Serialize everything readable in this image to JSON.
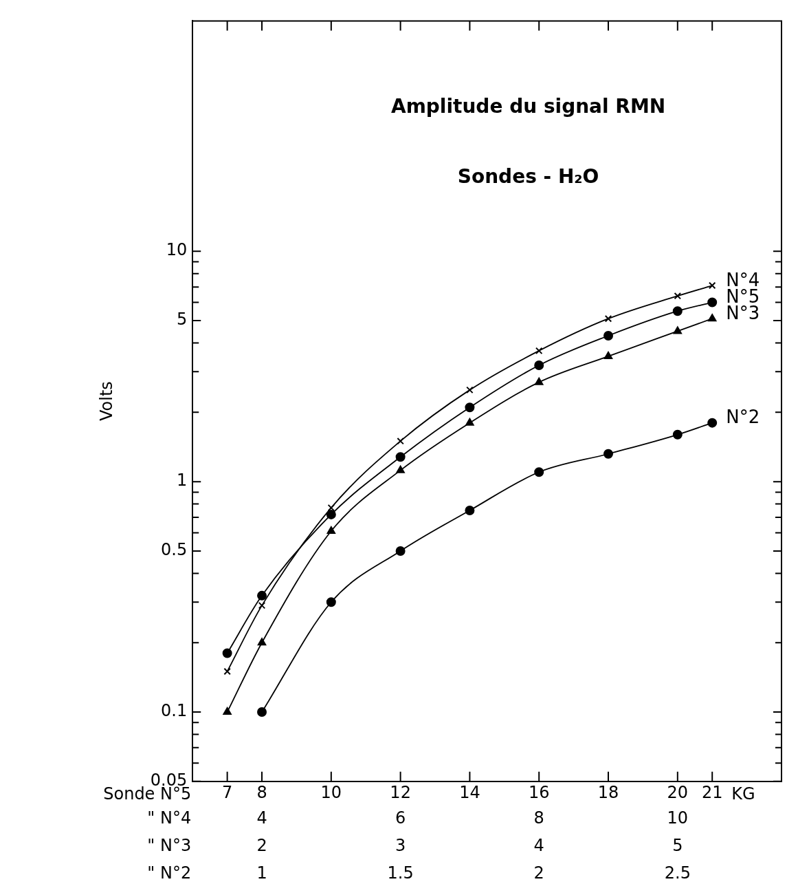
{
  "chart_data": {
    "type": "line",
    "title": "Amplitude du signal RMN",
    "subtitle": "Sondes - H₂O",
    "ylabel": "Volts",
    "xlabel": "Sonde N°5",
    "x2label": "\" N°4",
    "annotations": [
      "KG",
      "\" N°3",
      "2",
      "3",
      "4",
      "5",
      "\" N°2",
      "1",
      "1.5",
      "2",
      "2.5"
    ],
    "log": "y",
    "grid": false,
    "legend": "right",
    "line_style": "solid",
    "xlim": [
      6,
      23
    ],
    "xticks": [
      7,
      8,
      10,
      12,
      14,
      16,
      18,
      20,
      21
    ],
    "x2lim": [
      3,
      11.5
    ],
    "x2ticks": [
      4,
      6,
      8,
      10
    ],
    "ylim": [
      0.05,
      100
    ],
    "yticks": [
      0.05,
      {
        "value": 0.06,
        "label": null
      },
      {
        "value": 0.07,
        "label": null
      },
      {
        "value": 0.08,
        "label": null
      },
      {
        "value": 0.09,
        "label": null
      },
      0.1,
      {
        "value": 0.2,
        "label": null
      },
      {
        "value": 0.3,
        "label": null
      },
      {
        "value": 0.4,
        "label": null
      },
      0.5,
      {
        "value": 0.6,
        "label": null
      },
      {
        "value": 0.7,
        "label": null
      },
      {
        "value": 0.8,
        "label": null
      },
      {
        "value": 0.9,
        "label": null
      },
      1,
      {
        "value": 2,
        "label": null
      },
      {
        "value": 3,
        "label": null
      },
      {
        "value": 4,
        "label": null
      },
      5,
      {
        "value": 6,
        "label": null
      },
      {
        "value": 7,
        "label": null
      },
      {
        "value": 8,
        "label": null
      },
      {
        "value": 9,
        "label": null
      },
      10
    ],
    "series": [
      {
        "name": "N°4",
        "color": "#000000",
        "marker": "cross",
        "x": [
          7,
          8,
          10,
          12,
          14,
          16,
          18,
          20,
          21
        ],
        "values": [
          0.15,
          0.29,
          0.77,
          1.5,
          2.5,
          3.7,
          5.1,
          6.4,
          7.1
        ]
      },
      {
        "name": "N°5",
        "color": "#000000",
        "marker": "circle",
        "x": [
          7,
          8,
          10,
          12,
          14,
          16,
          18,
          20,
          21
        ],
        "values": [
          0.18,
          0.32,
          0.72,
          1.28,
          2.1,
          3.2,
          4.3,
          5.5,
          6
        ]
      },
      {
        "name": "N°3",
        "color": "#000000",
        "marker": "triangle",
        "x": [
          7,
          8,
          10,
          12,
          14,
          16,
          18,
          20,
          21
        ],
        "values": [
          0.1,
          0.2,
          0.61,
          1.12,
          1.8,
          2.7,
          3.5,
          4.5,
          5.1
        ]
      },
      {
        "name": "N°2",
        "color": "#000000",
        "marker": "circle",
        "x": [
          8,
          10,
          12,
          14,
          16,
          18,
          20,
          21
        ],
        "values": [
          0.1,
          0.3,
          0.5,
          0.75,
          1.1,
          1.32,
          1.6,
          1.8
        ]
      }
    ]
  }
}
